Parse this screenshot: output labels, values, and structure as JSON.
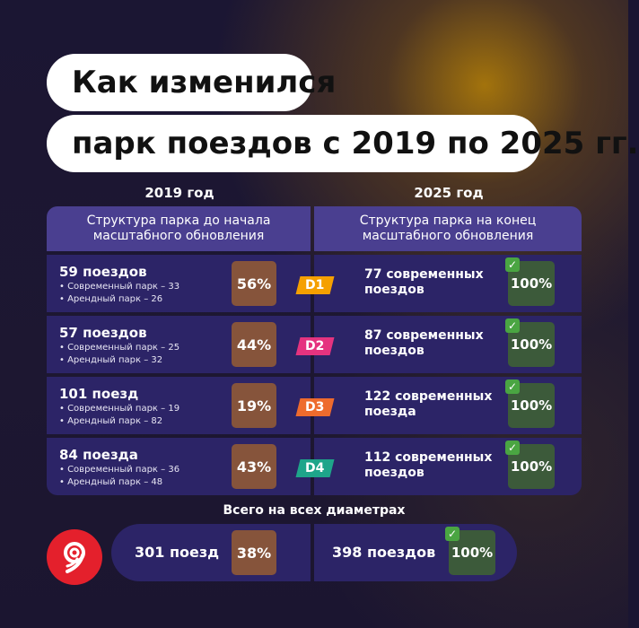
{
  "title": {
    "line1": "Как изменился",
    "line2": "парк поездов с 2019 по 2025 гг."
  },
  "years": {
    "left": "2019 год",
    "right": "2025 год"
  },
  "headers": {
    "left": "Структура парка до начала масштабного обновления",
    "right": "Структура парка на конец масштабного обновления"
  },
  "rows": [
    {
      "count": "59 поездов",
      "modern": "• Современный парк – 33",
      "rented": "• Арендный парк – 26",
      "pct": "56%",
      "line": "D1",
      "line_color": "#f5a000",
      "new_trains": "77 современных поездов",
      "new_pct": "100%",
      "check": "✓"
    },
    {
      "count": "57 поездов",
      "modern": "• Современный парк – 25",
      "rented": "• Арендный парк – 32",
      "pct": "44%",
      "line": "D2",
      "line_color": "#e5337f",
      "new_trains": "87 современных поездов",
      "new_pct": "100%",
      "check": "✓"
    },
    {
      "count": "101 поезд",
      "modern": "• Современный парк – 19",
      "rented": "• Арендный парк – 82",
      "pct": "19%",
      "line": "D3",
      "line_color": "#ee6b2d",
      "new_trains": "122 современных поезда",
      "new_pct": "100%",
      "check": "✓"
    },
    {
      "count": "84 поезда",
      "modern": "• Современный парк – 36",
      "rented": "• Арендный парк – 48",
      "pct": "43%",
      "line": "D4",
      "line_color": "#1ea58a",
      "new_trains": "112 современных поездов",
      "new_pct": "100%",
      "check": "✓"
    }
  ],
  "total": {
    "label": "Всего на всех диаметрах",
    "left_count": "301 поезд",
    "left_pct": "38%",
    "right_count": "398 поездов",
    "right_pct": "100%",
    "check": "✓"
  },
  "colors": {
    "accent_brown": "#86543b",
    "accent_green": "#3c5a3a",
    "panel": "#2c2467",
    "header": "#4a3f90",
    "logo_red": "#e4202c"
  }
}
